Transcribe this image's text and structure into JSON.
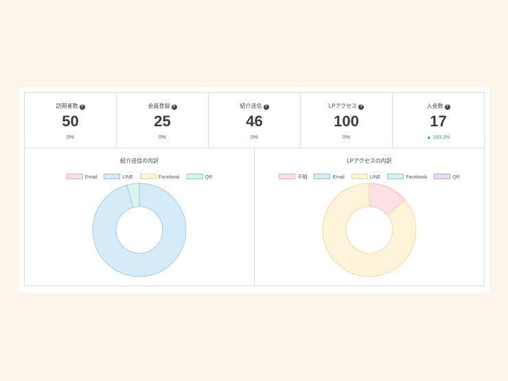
{
  "stats": [
    {
      "label": "訪問者数",
      "value": "50",
      "change": "0%",
      "trend": "flat"
    },
    {
      "label": "会員登録",
      "value": "25",
      "change": "0%",
      "trend": "flat"
    },
    {
      "label": "紹介送信",
      "value": "46",
      "change": "0%",
      "trend": "flat"
    },
    {
      "label": "LPアクセス",
      "value": "100",
      "change": "0%",
      "trend": "flat"
    },
    {
      "label": "入会数",
      "value": "17",
      "change": "▲ 183.3%",
      "trend": "up"
    }
  ],
  "help_glyph": "?",
  "chart_data": [
    {
      "type": "pie",
      "variant": "doughnut",
      "title": "紹介送信の内訳",
      "legend_position": "top",
      "categories": [
        "Email",
        "LINE",
        "Facebook",
        "QR"
      ],
      "values": [
        0,
        44,
        0,
        2
      ],
      "colors": [
        {
          "fill": "#ffe0e6",
          "stroke": "#f4a9b8"
        },
        {
          "fill": "#d6ebf8",
          "stroke": "#8cc4e6"
        },
        {
          "fill": "#fff3d9",
          "stroke": "#f6d28a"
        },
        {
          "fill": "#d9f3ee",
          "stroke": "#7fd3c3"
        }
      ]
    },
    {
      "type": "pie",
      "variant": "doughnut",
      "title": "LPアクセスの内訳",
      "legend_position": "top",
      "categories": [
        "不明",
        "Email",
        "LINE",
        "Facebook",
        "QR"
      ],
      "values": [
        14,
        0,
        86,
        0,
        0
      ],
      "colors": [
        {
          "fill": "#ffe0e6",
          "stroke": "#f4a9b8"
        },
        {
          "fill": "#d6ebf8",
          "stroke": "#8cc4e6"
        },
        {
          "fill": "#fff3d9",
          "stroke": "#f6d28a"
        },
        {
          "fill": "#d9f3ee",
          "stroke": "#7fd3c3"
        },
        {
          "fill": "#eadcff",
          "stroke": "#b89be8"
        }
      ]
    }
  ]
}
